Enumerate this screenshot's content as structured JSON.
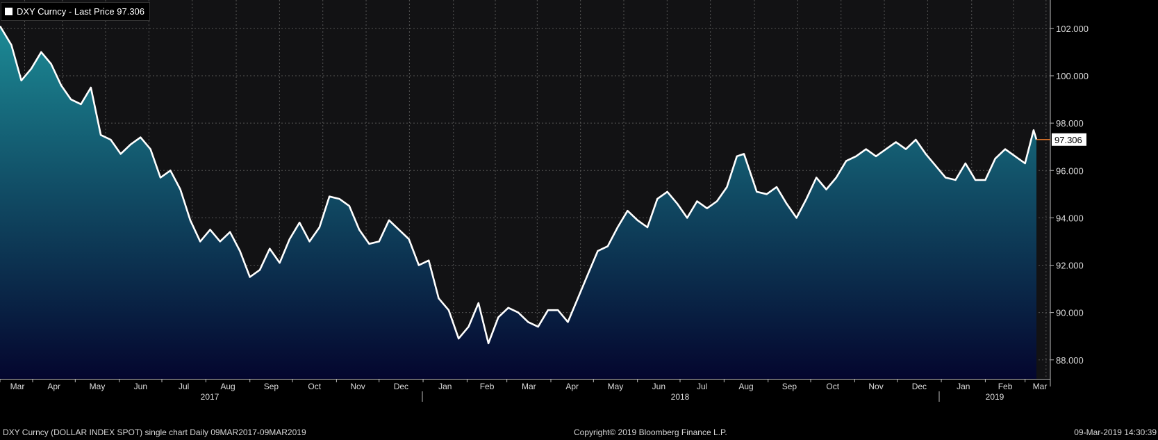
{
  "legend": {
    "label": "DXY Curncy - Last Price 97.306"
  },
  "last_price_label": "97.306",
  "footer": {
    "left": "DXY Curncy (DOLLAR INDEX SPOT) single chart  Daily 09MAR2017-09MAR2019",
    "center": "Copyright© 2019 Bloomberg Finance L.P.",
    "right": "09-Mar-2019 14:30:39"
  },
  "colors": {
    "background": "#121214",
    "line": "#ffffff",
    "area_top": "#1c8a95",
    "area_bottom": "#04062e",
    "last_price_marker": "#d8722a",
    "grid": "#555555"
  },
  "chart_data": {
    "type": "area",
    "title": "DXY Curncy - Last Price",
    "xlabel": "",
    "ylabel": "",
    "ylim": [
      87.2,
      103.2
    ],
    "yticks": [
      "88.000",
      "90.000",
      "92.000",
      "94.000",
      "96.000",
      "98.000",
      "100.000",
      "102.000"
    ],
    "grid": true,
    "legend_position": "top-left",
    "x_month_labels": [
      "Mar",
      "Apr",
      "May",
      "Jun",
      "Jul",
      "Aug",
      "Sep",
      "Oct",
      "Nov",
      "Dec",
      "Jan",
      "Feb",
      "Mar",
      "Apr",
      "May",
      "Jun",
      "Jul",
      "Aug",
      "Sep",
      "Oct",
      "Nov",
      "Dec",
      "Jan",
      "Feb",
      "Mar"
    ],
    "x_year_labels": [
      "2017",
      "2018",
      "2019"
    ],
    "series": [
      {
        "name": "DXY Curncy - Last Price",
        "x": [
          "2017-03-09",
          "2017-03-17",
          "2017-03-24",
          "2017-03-31",
          "2017-04-07",
          "2017-04-14",
          "2017-04-21",
          "2017-04-28",
          "2017-05-05",
          "2017-05-12",
          "2017-05-19",
          "2017-05-26",
          "2017-06-02",
          "2017-06-09",
          "2017-06-16",
          "2017-06-23",
          "2017-06-30",
          "2017-07-07",
          "2017-07-14",
          "2017-07-21",
          "2017-07-28",
          "2017-08-04",
          "2017-08-11",
          "2017-08-18",
          "2017-08-25",
          "2017-09-01",
          "2017-09-08",
          "2017-09-15",
          "2017-09-22",
          "2017-09-29",
          "2017-10-06",
          "2017-10-13",
          "2017-10-20",
          "2017-10-27",
          "2017-11-03",
          "2017-11-10",
          "2017-11-17",
          "2017-11-24",
          "2017-12-01",
          "2017-12-08",
          "2017-12-15",
          "2017-12-22",
          "2017-12-29",
          "2018-01-05",
          "2018-01-12",
          "2018-01-19",
          "2018-01-26",
          "2018-02-02",
          "2018-02-09",
          "2018-02-16",
          "2018-02-23",
          "2018-03-02",
          "2018-03-09",
          "2018-03-16",
          "2018-03-23",
          "2018-03-30",
          "2018-04-06",
          "2018-04-13",
          "2018-04-20",
          "2018-04-27",
          "2018-05-04",
          "2018-05-11",
          "2018-05-18",
          "2018-05-25",
          "2018-06-01",
          "2018-06-08",
          "2018-06-15",
          "2018-06-22",
          "2018-06-29",
          "2018-07-06",
          "2018-07-13",
          "2018-07-20",
          "2018-07-27",
          "2018-08-03",
          "2018-08-10",
          "2018-08-15",
          "2018-08-24",
          "2018-08-31",
          "2018-09-07",
          "2018-09-14",
          "2018-09-21",
          "2018-09-28",
          "2018-10-05",
          "2018-10-12",
          "2018-10-19",
          "2018-10-26",
          "2018-11-02",
          "2018-11-09",
          "2018-11-16",
          "2018-11-23",
          "2018-11-30",
          "2018-12-07",
          "2018-12-14",
          "2018-12-21",
          "2018-12-28",
          "2019-01-04",
          "2019-01-11",
          "2019-01-18",
          "2019-01-25",
          "2019-02-01",
          "2019-02-08",
          "2019-02-15",
          "2019-02-22",
          "2019-03-01",
          "2019-03-07",
          "2019-03-09"
        ],
        "values": [
          102.1,
          101.3,
          99.8,
          100.3,
          101.0,
          100.5,
          99.6,
          99.0,
          98.8,
          99.5,
          97.5,
          97.3,
          96.7,
          97.1,
          97.4,
          96.9,
          95.7,
          96.0,
          95.2,
          93.9,
          93.0,
          93.5,
          93.0,
          93.4,
          92.6,
          91.5,
          91.8,
          92.7,
          92.1,
          93.1,
          93.8,
          93.0,
          93.6,
          94.9,
          94.8,
          94.5,
          93.5,
          92.9,
          93.0,
          93.9,
          93.5,
          93.1,
          92.0,
          92.2,
          90.6,
          90.1,
          88.9,
          89.4,
          90.4,
          88.7,
          89.8,
          90.2,
          90.0,
          89.6,
          89.4,
          90.1,
          90.1,
          89.6,
          90.6,
          91.6,
          92.6,
          92.8,
          93.6,
          94.3,
          93.9,
          93.6,
          94.8,
          95.1,
          94.6,
          94.0,
          94.7,
          94.4,
          94.7,
          95.3,
          96.6,
          96.7,
          95.1,
          95.0,
          95.3,
          94.6,
          94.0,
          94.8,
          95.7,
          95.2,
          95.7,
          96.4,
          96.6,
          96.9,
          96.6,
          96.9,
          97.2,
          96.9,
          97.3,
          96.7,
          96.2,
          95.7,
          95.6,
          96.3,
          95.6,
          95.6,
          96.5,
          96.9,
          96.6,
          96.3,
          97.7,
          97.306
        ]
      }
    ]
  }
}
